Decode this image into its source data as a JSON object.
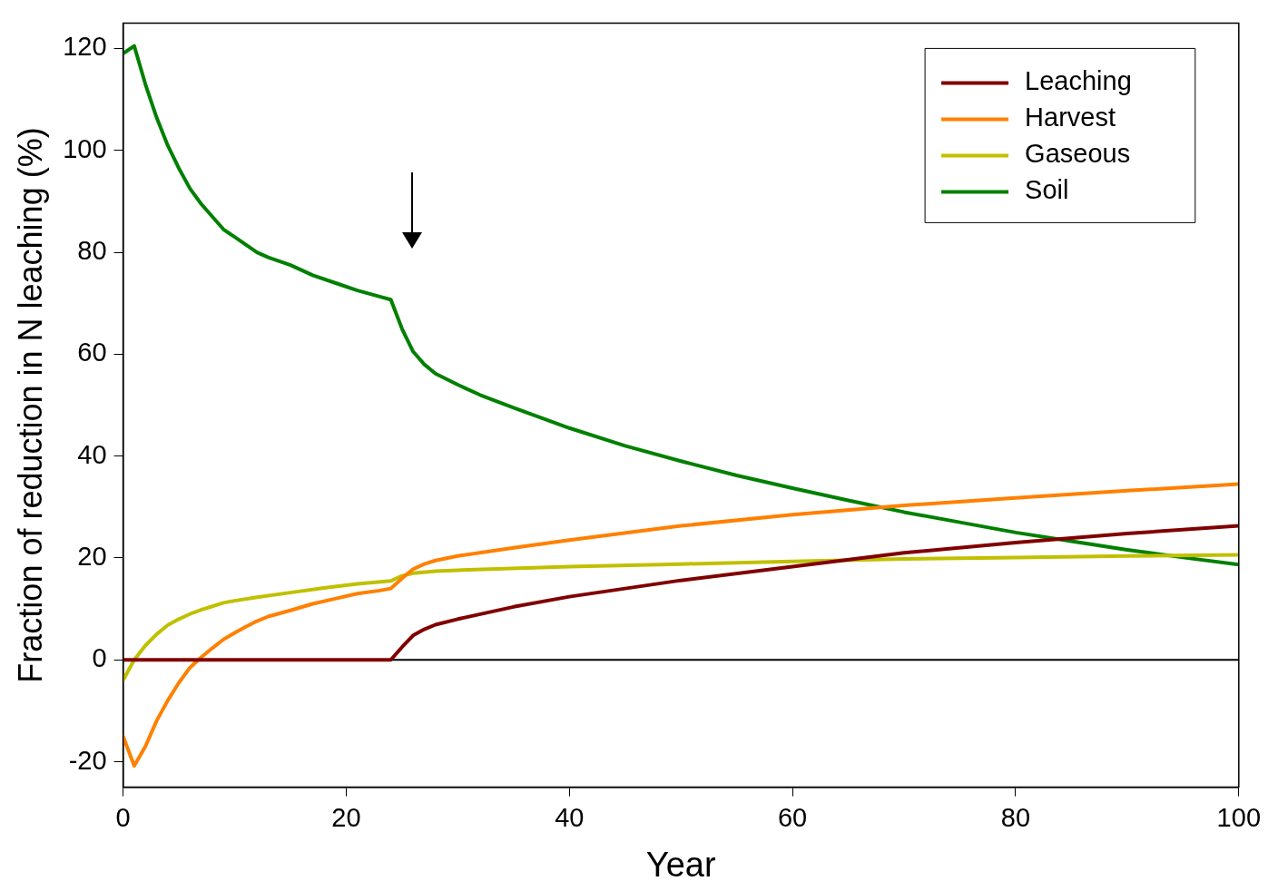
{
  "chart_data": {
    "type": "line",
    "xlabel": "Year",
    "ylabel": "Fraction of reduction in N leaching (%)",
    "xlim": [
      0,
      100
    ],
    "xticks": [
      0,
      20,
      40,
      60,
      80,
      100
    ],
    "ylim": [
      -25,
      125
    ],
    "yticks": [
      -20,
      0,
      20,
      40,
      60,
      80,
      100,
      120
    ],
    "grid": false,
    "legend": "top right",
    "marker": "none",
    "line_style": "solid",
    "ref_lines": [
      {
        "axis": "y",
        "value": 0,
        "color": "#000000"
      }
    ],
    "series": [
      {
        "name": "Leaching",
        "color": "#800000",
        "x": [
          0,
          24,
          25,
          26,
          27,
          28,
          30,
          35,
          40,
          50,
          60,
          70,
          80,
          90,
          100
        ],
        "values": [
          0,
          0,
          2.5,
          4.8,
          6,
          6.9,
          8,
          10.4,
          12.4,
          15.6,
          18.3,
          21,
          23,
          24.8,
          26.3
        ]
      },
      {
        "name": "Harvest",
        "color": "#ff8000",
        "x": [
          0,
          1,
          2,
          3,
          4,
          5,
          6,
          7,
          8,
          9,
          10,
          11,
          12,
          13,
          15,
          17,
          19,
          21,
          23,
          24,
          25,
          26,
          27,
          28,
          30,
          35,
          40,
          50,
          60,
          70,
          80,
          90,
          100
        ],
        "values": [
          -15,
          -20.8,
          -17,
          -12,
          -8,
          -4.5,
          -1.5,
          0.5,
          2.3,
          4,
          5.3,
          6.5,
          7.6,
          8.5,
          9.7,
          11,
          12,
          13,
          13.6,
          14,
          16,
          17.8,
          18.8,
          19.5,
          20.4,
          22,
          23.5,
          26.3,
          28.5,
          30.3,
          31.8,
          33.2,
          34.5
        ]
      },
      {
        "name": "Gaseous",
        "color": "#c0c000",
        "x": [
          0,
          1,
          2,
          3,
          4,
          5,
          6,
          7,
          8,
          9,
          10,
          12,
          15,
          18,
          21,
          24,
          25,
          26,
          28,
          30,
          40,
          50,
          60,
          70,
          80,
          90,
          100
        ],
        "values": [
          -4,
          0,
          2.8,
          5,
          6.8,
          8,
          9,
          9.8,
          10.5,
          11.2,
          11.6,
          12.3,
          13.2,
          14.1,
          14.9,
          15.5,
          16.5,
          17,
          17.4,
          17.6,
          18.3,
          18.8,
          19.3,
          19.8,
          20.1,
          20.4,
          20.6
        ]
      },
      {
        "name": "Soil",
        "color": "#008000",
        "x": [
          0,
          1,
          2,
          3,
          4,
          5,
          6,
          7,
          8,
          9,
          10,
          11,
          12,
          13,
          15,
          17,
          19,
          21,
          23,
          24,
          25,
          26,
          27,
          28,
          30,
          32,
          35,
          40,
          45,
          50,
          55,
          60,
          65,
          70,
          75,
          80,
          85,
          90,
          95,
          100
        ],
        "values": [
          119,
          120.5,
          113,
          106.5,
          101,
          96.5,
          92.5,
          89.5,
          87,
          84.5,
          83,
          81.5,
          80,
          79,
          77.5,
          75.5,
          74,
          72.5,
          71.3,
          70.7,
          65,
          60.5,
          58,
          56.2,
          54,
          52,
          49.5,
          45.5,
          42,
          39,
          36.2,
          33.7,
          31.3,
          29,
          27,
          25,
          23.3,
          21.6,
          20.1,
          18.7
        ]
      }
    ]
  }
}
